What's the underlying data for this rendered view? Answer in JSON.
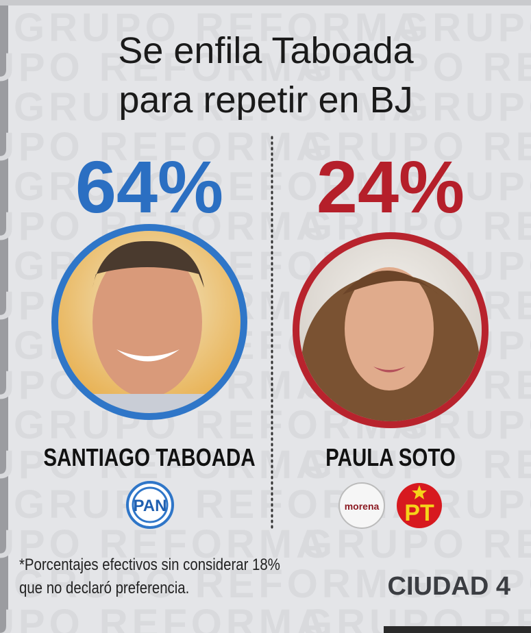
{
  "watermark": "GRUPO REFORMA",
  "title": {
    "line1": "Se enfila Taboada",
    "line2": "para repetir en BJ"
  },
  "candidates": [
    {
      "percent": "64%",
      "name": "SANTIAGO TABOADA",
      "parties": [
        "PAN"
      ]
    },
    {
      "percent": "24%",
      "name": "PAULA SOTO",
      "parties": [
        "morena",
        "PT"
      ]
    }
  ],
  "footnote": {
    "line1": "*Porcentajes efectivos sin considerar 18%",
    "line2": "que no declaró preferencia."
  },
  "section": "CIUDAD 4"
}
